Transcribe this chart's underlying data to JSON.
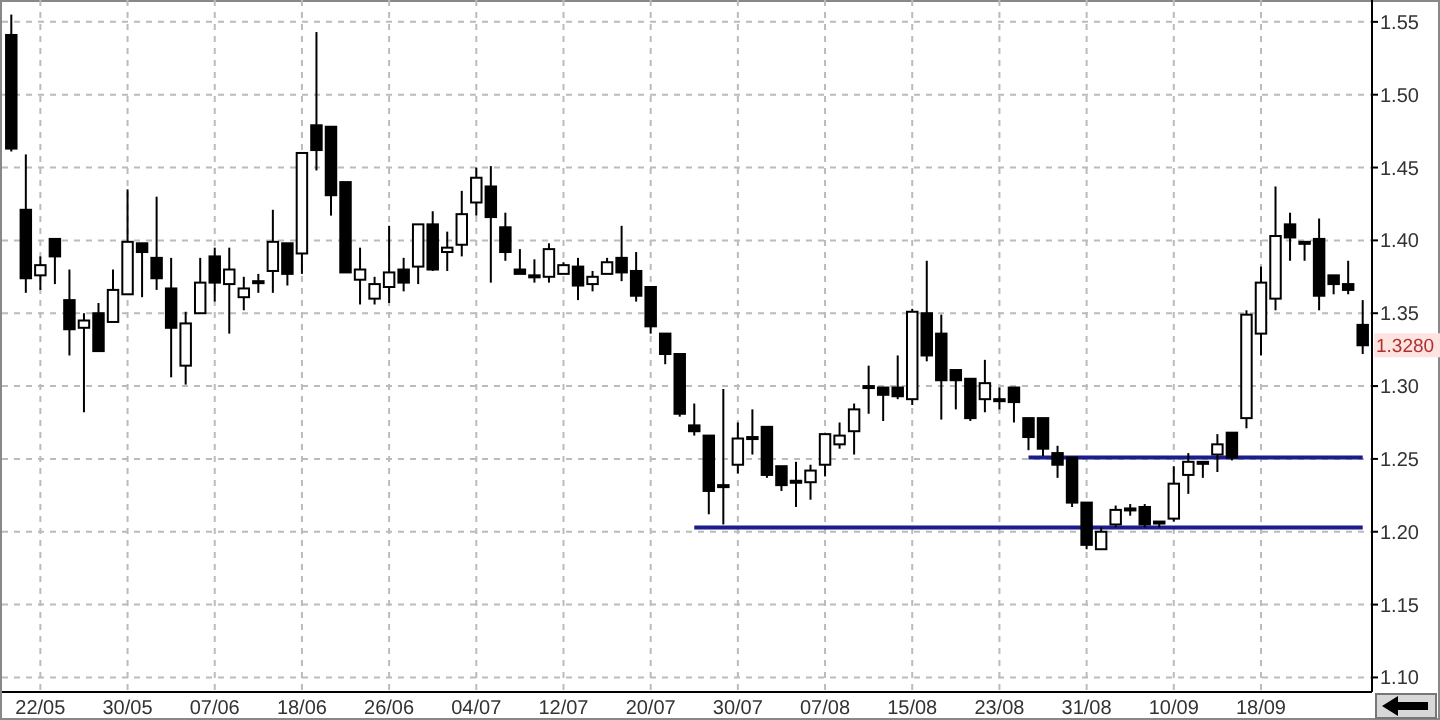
{
  "chart_data": {
    "type": "candlestick",
    "categories": [
      null,
      null,
      "22/05",
      null,
      null,
      null,
      null,
      null,
      "30/05",
      null,
      null,
      null,
      null,
      null,
      "07/06",
      null,
      null,
      null,
      null,
      null,
      "18/06",
      null,
      null,
      null,
      null,
      null,
      "26/06",
      null,
      null,
      null,
      null,
      null,
      "04/07",
      null,
      null,
      null,
      null,
      null,
      "12/07",
      null,
      null,
      null,
      null,
      null,
      "20/07",
      null,
      null,
      null,
      null,
      null,
      "30/07",
      null,
      null,
      null,
      null,
      null,
      "07/08",
      null,
      null,
      null,
      null,
      null,
      "15/08",
      null,
      null,
      null,
      null,
      null,
      "23/08",
      null,
      null,
      null,
      null,
      null,
      "31/08",
      null,
      null,
      null,
      null,
      null,
      "10/09",
      null,
      null,
      null,
      null,
      null,
      "18/09",
      null,
      null,
      null,
      null,
      null,
      null,
      null
    ],
    "ohlc": [
      [
        1.541,
        1.555,
        1.461,
        1.463
      ],
      [
        1.421,
        1.459,
        1.364,
        1.374
      ],
      [
        1.376,
        1.389,
        1.366,
        1.383
      ],
      [
        1.401,
        1.401,
        1.37,
        1.389
      ],
      [
        1.359,
        1.38,
        1.321,
        1.339
      ],
      [
        1.34,
        1.35,
        1.282,
        1.345
      ],
      [
        1.35,
        1.357,
        1.324,
        1.324
      ],
      [
        1.344,
        1.38,
        1.344,
        1.366
      ],
      [
        1.363,
        1.435,
        1.363,
        1.399
      ],
      [
        1.398,
        1.398,
        1.361,
        1.392
      ],
      [
        1.388,
        1.43,
        1.366,
        1.374
      ],
      [
        1.367,
        1.388,
        1.306,
        1.34
      ],
      [
        1.314,
        1.351,
        1.301,
        1.343
      ],
      [
        1.35,
        1.388,
        1.35,
        1.371
      ],
      [
        1.389,
        1.395,
        1.358,
        1.371
      ],
      [
        1.37,
        1.395,
        1.336,
        1.38
      ],
      [
        1.361,
        1.375,
        1.352,
        1.367
      ],
      [
        1.372,
        1.377,
        1.364,
        1.371
      ],
      [
        1.379,
        1.421,
        1.364,
        1.399
      ],
      [
        1.398,
        1.398,
        1.369,
        1.377
      ],
      [
        1.391,
        1.46,
        1.377,
        1.46
      ],
      [
        1.479,
        1.543,
        1.448,
        1.462
      ],
      [
        1.478,
        1.478,
        1.417,
        1.431
      ],
      [
        1.44,
        1.44,
        1.378,
        1.378
      ],
      [
        1.373,
        1.395,
        1.356,
        1.38
      ],
      [
        1.36,
        1.375,
        1.356,
        1.37
      ],
      [
        1.368,
        1.41,
        1.357,
        1.378
      ],
      [
        1.38,
        1.388,
        1.365,
        1.371
      ],
      [
        1.382,
        1.411,
        1.37,
        1.411
      ],
      [
        1.411,
        1.42,
        1.379,
        1.38
      ],
      [
        1.392,
        1.406,
        1.379,
        1.395
      ],
      [
        1.397,
        1.434,
        1.389,
        1.418
      ],
      [
        1.426,
        1.45,
        1.417,
        1.443
      ],
      [
        1.437,
        1.451,
        1.371,
        1.416
      ],
      [
        1.409,
        1.419,
        1.386,
        1.392
      ],
      [
        1.38,
        1.394,
        1.377,
        1.377
      ],
      [
        1.376,
        1.387,
        1.371,
        1.376
      ],
      [
        1.375,
        1.398,
        1.371,
        1.394
      ],
      [
        1.377,
        1.385,
        1.377,
        1.383
      ],
      [
        1.382,
        1.388,
        1.359,
        1.369
      ],
      [
        1.37,
        1.379,
        1.365,
        1.375
      ],
      [
        1.377,
        1.388,
        1.377,
        1.385
      ],
      [
        1.388,
        1.41,
        1.372,
        1.378
      ],
      [
        1.379,
        1.392,
        1.358,
        1.362
      ],
      [
        1.368,
        1.368,
        1.336,
        1.341
      ],
      [
        1.336,
        1.336,
        1.315,
        1.322
      ],
      [
        1.322,
        1.322,
        1.279,
        1.281
      ],
      [
        1.273,
        1.288,
        1.266,
        1.269
      ],
      [
        1.266,
        1.266,
        1.212,
        1.228
      ],
      [
        1.232,
        1.298,
        1.205,
        1.231
      ],
      [
        1.246,
        1.275,
        1.24,
        1.264
      ],
      [
        1.265,
        1.284,
        1.253,
        1.265
      ],
      [
        1.272,
        1.272,
        1.237,
        1.239
      ],
      [
        1.245,
        1.245,
        1.228,
        1.232
      ],
      [
        1.235,
        1.248,
        1.217,
        1.235
      ],
      [
        1.234,
        1.246,
        1.222,
        1.242
      ],
      [
        1.246,
        1.267,
        1.238,
        1.267
      ],
      [
        1.26,
        1.275,
        1.257,
        1.266
      ],
      [
        1.269,
        1.288,
        1.253,
        1.284
      ],
      [
        1.3,
        1.314,
        1.281,
        1.3
      ],
      [
        1.299,
        1.299,
        1.276,
        1.294
      ],
      [
        1.299,
        1.321,
        1.291,
        1.293
      ],
      [
        1.291,
        1.353,
        1.287,
        1.351
      ],
      [
        1.35,
        1.386,
        1.317,
        1.321
      ],
      [
        1.336,
        1.349,
        1.277,
        1.304
      ],
      [
        1.311,
        1.311,
        1.284,
        1.304
      ],
      [
        1.305,
        1.305,
        1.276,
        1.278
      ],
      [
        1.291,
        1.318,
        1.282,
        1.302
      ],
      [
        1.291,
        1.299,
        1.284,
        1.291
      ],
      [
        1.299,
        1.299,
        1.275,
        1.289
      ],
      [
        1.278,
        1.278,
        1.256,
        1.265
      ],
      [
        1.278,
        1.278,
        1.252,
        1.257
      ],
      [
        1.254,
        1.259,
        1.237,
        1.246
      ],
      [
        1.251,
        1.251,
        1.217,
        1.22
      ],
      [
        1.22,
        1.22,
        1.188,
        1.191
      ],
      [
        1.188,
        1.203,
        1.188,
        1.2
      ],
      [
        1.205,
        1.218,
        1.203,
        1.215
      ],
      [
        1.216,
        1.219,
        1.211,
        1.216
      ],
      [
        1.217,
        1.219,
        1.203,
        1.205
      ],
      [
        1.207,
        1.207,
        1.203,
        1.207
      ],
      [
        1.209,
        1.245,
        1.207,
        1.233
      ],
      [
        1.239,
        1.254,
        1.226,
        1.248
      ],
      [
        1.248,
        1.248,
        1.237,
        1.248
      ],
      [
        1.253,
        1.267,
        1.241,
        1.26
      ],
      [
        1.268,
        1.268,
        1.249,
        1.251
      ],
      [
        1.278,
        1.352,
        1.271,
        1.349
      ],
      [
        1.336,
        1.382,
        1.321,
        1.371
      ],
      [
        1.36,
        1.437,
        1.352,
        1.403
      ],
      [
        1.411,
        1.419,
        1.386,
        1.402
      ],
      [
        1.399,
        1.399,
        1.386,
        1.399
      ],
      [
        1.401,
        1.415,
        1.352,
        1.362
      ],
      [
        1.376,
        1.376,
        1.363,
        1.37
      ],
      [
        1.37,
        1.386,
        1.363,
        1.366
      ],
      [
        1.342,
        1.359,
        1.322,
        1.328
      ]
    ],
    "series": [
      {
        "type": "line",
        "color": "#1c1c8c",
        "values": [
          null,
          null,
          null,
          null,
          null,
          null,
          null,
          null,
          null,
          null,
          null,
          null,
          null,
          null,
          null,
          null,
          null,
          null,
          null,
          null,
          null,
          null,
          null,
          null,
          null,
          null,
          null,
          null,
          null,
          null,
          null,
          null,
          null,
          null,
          null,
          null,
          null,
          null,
          null,
          null,
          null,
          null,
          null,
          null,
          null,
          null,
          null,
          1.203,
          1.203,
          1.203,
          1.203,
          1.203,
          1.203,
          1.203,
          1.203,
          1.203,
          1.203,
          1.203,
          1.203,
          1.203,
          1.203,
          1.203,
          1.203,
          1.203,
          1.203,
          1.203,
          1.203,
          1.203,
          1.203,
          1.203,
          1.203,
          1.203,
          1.203,
          1.203,
          1.203,
          1.203,
          1.203,
          1.203,
          1.203,
          1.203,
          1.203,
          1.203,
          1.203,
          1.203,
          1.203,
          1.203,
          1.203,
          1.203,
          1.203,
          1.203,
          1.203,
          1.203,
          1.203,
          1.203
        ]
      },
      {
        "type": "line",
        "color": "#1c1c8c",
        "values": [
          null,
          null,
          null,
          null,
          null,
          null,
          null,
          null,
          null,
          null,
          null,
          null,
          null,
          null,
          null,
          null,
          null,
          null,
          null,
          null,
          null,
          null,
          null,
          null,
          null,
          null,
          null,
          null,
          null,
          null,
          null,
          null,
          null,
          null,
          null,
          null,
          null,
          null,
          null,
          null,
          null,
          null,
          null,
          null,
          null,
          null,
          null,
          null,
          null,
          null,
          null,
          null,
          null,
          null,
          null,
          null,
          null,
          null,
          null,
          null,
          null,
          null,
          null,
          null,
          null,
          null,
          null,
          null,
          null,
          null,
          1.251,
          1.251,
          1.251,
          1.251,
          1.251,
          1.251,
          1.251,
          1.251,
          1.251,
          1.251,
          1.251,
          1.251,
          1.251,
          1.251,
          1.251,
          1.251,
          1.251,
          1.251,
          1.251,
          1.251,
          1.251,
          1.251,
          1.251,
          1.251
        ]
      }
    ],
    "ylim": [
      1.09,
      1.565
    ],
    "yticks": [
      {
        "value": 1.1,
        "label": "1.10"
      },
      1.15,
      {
        "value": 1.2,
        "label": "1.20"
      },
      1.25,
      {
        "value": 1.3,
        "label": "1.30"
      },
      1.35,
      {
        "value": 1.4,
        "label": "1.40"
      },
      1.45,
      {
        "value": 1.5,
        "label": "1.50"
      },
      1.55
    ],
    "grid": true,
    "annotations": [
      {
        "text": "1.3280",
        "y": 1.328
      }
    ]
  }
}
